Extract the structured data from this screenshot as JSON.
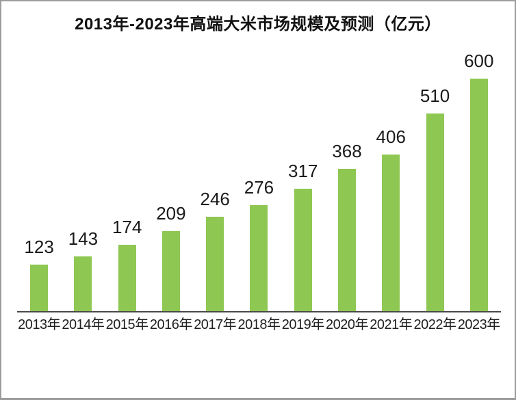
{
  "page": {
    "background": "#ffffff",
    "border_color": "#9c9c9c"
  },
  "chart_data": {
    "type": "bar",
    "title": "2013年-2023年高端大米市场规模及预测（亿元）",
    "categories": [
      "2013年",
      "2014年",
      "2015年",
      "2016年",
      "2017年",
      "2018年",
      "2019年",
      "2020年",
      "2021年",
      "2022年",
      "2023年"
    ],
    "values": [
      123,
      143,
      174,
      209,
      246,
      276,
      317,
      368,
      406,
      510,
      600
    ],
    "xlabel": "",
    "ylabel": "",
    "ylim": [
      0,
      600
    ],
    "grid": false,
    "legend_position": "none",
    "data_labels": true,
    "bar_color": "#8ec752",
    "value_label_color": "#1a1a1a",
    "tick_label_color": "#1f1f1f",
    "axis_line_color": "#4a4a4a",
    "title_color": "#111111"
  }
}
